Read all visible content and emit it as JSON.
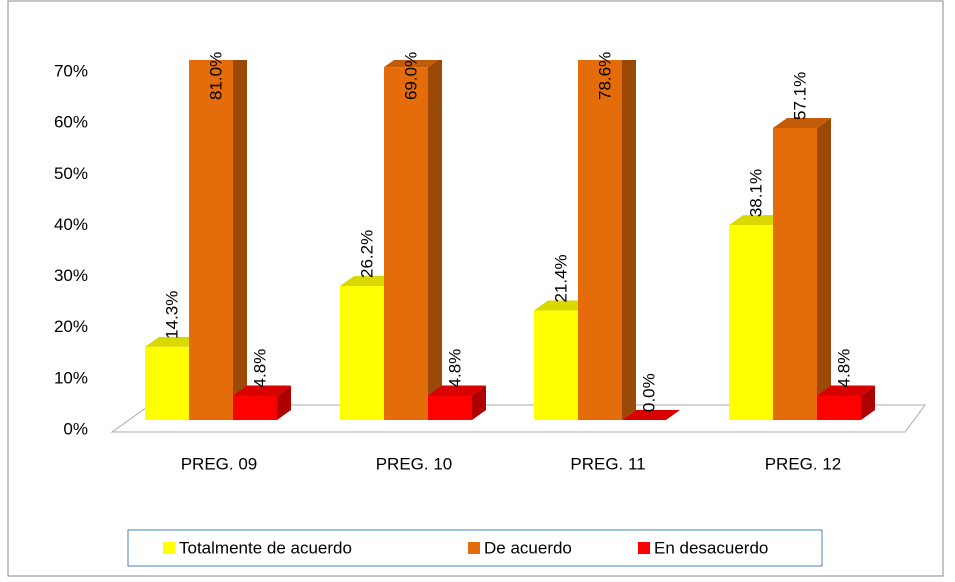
{
  "chart_data": {
    "type": "bar3d",
    "categories": [
      "PREG. 09",
      "PREG. 10",
      "PREG. 11",
      "PREG. 12"
    ],
    "series": [
      {
        "name": "Totalmente de acuerdo",
        "color": "#ffff00",
        "values": [
          14.3,
          26.2,
          21.4,
          38.1
        ],
        "value_labels": [
          "14.3%",
          "26.2%",
          "21.4%",
          "38.1%"
        ]
      },
      {
        "name": "De acuerdo",
        "color": "#e46c0a",
        "values": [
          81.0,
          69.0,
          78.6,
          57.1
        ],
        "value_labels": [
          "81.0%",
          "69.0%",
          "78.6%",
          "57.1%"
        ]
      },
      {
        "name": "En desacuerdo",
        "color": "#ff0000",
        "values": [
          4.8,
          4.8,
          0.0,
          4.8
        ],
        "value_labels": [
          "4.8%",
          "4.8%",
          "0.0%",
          "4.8%"
        ]
      }
    ],
    "ylim": [
      0,
      70
    ],
    "yticks": [
      {
        "value": 0,
        "label": "0%"
      },
      {
        "value": 10,
        "label": "10%"
      },
      {
        "value": 20,
        "label": "20%"
      },
      {
        "value": 30,
        "label": "30%"
      },
      {
        "value": 40,
        "label": "40%"
      },
      {
        "value": 50,
        "label": "50%"
      },
      {
        "value": 60,
        "label": "60%"
      },
      {
        "value": 70,
        "label": "70%"
      }
    ],
    "legend": "bottom"
  }
}
